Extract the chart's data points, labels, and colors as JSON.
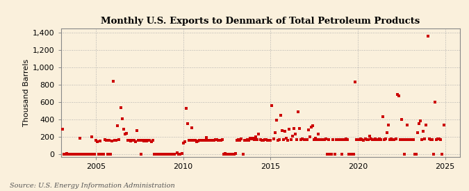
{
  "title": "Monthly U.S. Exports to Denmark of Total Petroleum Products",
  "ylabel": "Thousand Barrels",
  "source": "Source: U.S. Energy Information Administration",
  "bg_color": "#FAF0DC",
  "dot_color": "#CC0000",
  "grid_color": "#AAAAAA",
  "xmin": 2003.0,
  "xmax": 2025.83,
  "ymin": -30,
  "ymax": 1450,
  "yticks": [
    0,
    200,
    400,
    600,
    800,
    1000,
    1200,
    1400
  ],
  "xticks": [
    2005,
    2010,
    2015,
    2020,
    2025
  ],
  "data": [
    [
      2003.08,
      290
    ],
    [
      2003.17,
      0
    ],
    [
      2003.25,
      0
    ],
    [
      2003.33,
      5
    ],
    [
      2003.42,
      0
    ],
    [
      2003.5,
      0
    ],
    [
      2003.58,
      0
    ],
    [
      2003.67,
      0
    ],
    [
      2003.75,
      0
    ],
    [
      2003.83,
      0
    ],
    [
      2003.92,
      0
    ],
    [
      2004.0,
      0
    ],
    [
      2004.08,
      185
    ],
    [
      2004.17,
      0
    ],
    [
      2004.25,
      0
    ],
    [
      2004.33,
      0
    ],
    [
      2004.42,
      0
    ],
    [
      2004.5,
      0
    ],
    [
      2004.58,
      0
    ],
    [
      2004.67,
      0
    ],
    [
      2004.75,
      200
    ],
    [
      2004.83,
      0
    ],
    [
      2004.92,
      0
    ],
    [
      2005.0,
      160
    ],
    [
      2005.08,
      145
    ],
    [
      2005.17,
      0
    ],
    [
      2005.25,
      150
    ],
    [
      2005.33,
      0
    ],
    [
      2005.42,
      0
    ],
    [
      2005.5,
      165
    ],
    [
      2005.58,
      160
    ],
    [
      2005.67,
      0
    ],
    [
      2005.75,
      155
    ],
    [
      2005.83,
      0
    ],
    [
      2005.92,
      150
    ],
    [
      2006.0,
      840
    ],
    [
      2006.08,
      155
    ],
    [
      2006.17,
      155
    ],
    [
      2006.25,
      330
    ],
    [
      2006.33,
      165
    ],
    [
      2006.42,
      540
    ],
    [
      2006.5,
      410
    ],
    [
      2006.58,
      285
    ],
    [
      2006.67,
      230
    ],
    [
      2006.75,
      240
    ],
    [
      2006.83,
      155
    ],
    [
      2006.92,
      160
    ],
    [
      2007.0,
      150
    ],
    [
      2007.08,
      155
    ],
    [
      2007.17,
      155
    ],
    [
      2007.25,
      145
    ],
    [
      2007.33,
      270
    ],
    [
      2007.42,
      155
    ],
    [
      2007.5,
      155
    ],
    [
      2007.58,
      0
    ],
    [
      2007.67,
      155
    ],
    [
      2007.75,
      150
    ],
    [
      2007.83,
      155
    ],
    [
      2007.92,
      150
    ],
    [
      2008.0,
      155
    ],
    [
      2008.08,
      155
    ],
    [
      2008.17,
      145
    ],
    [
      2008.25,
      155
    ],
    [
      2008.33,
      0
    ],
    [
      2008.42,
      0
    ],
    [
      2008.5,
      0
    ],
    [
      2008.67,
      0
    ],
    [
      2008.75,
      0
    ],
    [
      2008.83,
      0
    ],
    [
      2008.92,
      0
    ],
    [
      2009.0,
      0
    ],
    [
      2009.08,
      0
    ],
    [
      2009.17,
      0
    ],
    [
      2009.25,
      0
    ],
    [
      2009.33,
      0
    ],
    [
      2009.42,
      0
    ],
    [
      2009.5,
      0
    ],
    [
      2009.67,
      15
    ],
    [
      2009.75,
      0
    ],
    [
      2009.83,
      0
    ],
    [
      2009.92,
      5
    ],
    [
      2010.0,
      130
    ],
    [
      2010.08,
      145
    ],
    [
      2010.17,
      530
    ],
    [
      2010.25,
      350
    ],
    [
      2010.33,
      155
    ],
    [
      2010.42,
      155
    ],
    [
      2010.5,
      300
    ],
    [
      2010.58,
      160
    ],
    [
      2010.67,
      155
    ],
    [
      2010.75,
      145
    ],
    [
      2010.83,
      150
    ],
    [
      2010.92,
      160
    ],
    [
      2011.0,
      160
    ],
    [
      2011.08,
      155
    ],
    [
      2011.17,
      155
    ],
    [
      2011.25,
      155
    ],
    [
      2011.33,
      190
    ],
    [
      2011.42,
      160
    ],
    [
      2011.5,
      160
    ],
    [
      2011.58,
      160
    ],
    [
      2011.67,
      155
    ],
    [
      2011.75,
      155
    ],
    [
      2011.83,
      165
    ],
    [
      2011.92,
      165
    ],
    [
      2012.0,
      155
    ],
    [
      2012.08,
      155
    ],
    [
      2012.17,
      155
    ],
    [
      2012.25,
      165
    ],
    [
      2012.33,
      0
    ],
    [
      2012.42,
      5
    ],
    [
      2012.5,
      0
    ],
    [
      2012.58,
      0
    ],
    [
      2012.67,
      0
    ],
    [
      2012.75,
      0
    ],
    [
      2012.83,
      0
    ],
    [
      2012.92,
      0
    ],
    [
      2013.0,
      5
    ],
    [
      2013.08,
      160
    ],
    [
      2013.17,
      165
    ],
    [
      2013.25,
      160
    ],
    [
      2013.33,
      175
    ],
    [
      2013.42,
      0
    ],
    [
      2013.5,
      155
    ],
    [
      2013.58,
      155
    ],
    [
      2013.67,
      165
    ],
    [
      2013.75,
      160
    ],
    [
      2013.83,
      180
    ],
    [
      2013.92,
      175
    ],
    [
      2014.0,
      185
    ],
    [
      2014.08,
      165
    ],
    [
      2014.17,
      200
    ],
    [
      2014.25,
      165
    ],
    [
      2014.33,
      235
    ],
    [
      2014.42,
      165
    ],
    [
      2014.5,
      160
    ],
    [
      2014.58,
      160
    ],
    [
      2014.67,
      165
    ],
    [
      2014.75,
      165
    ],
    [
      2014.83,
      160
    ],
    [
      2014.92,
      160
    ],
    [
      2015.0,
      155
    ],
    [
      2015.08,
      560
    ],
    [
      2015.17,
      175
    ],
    [
      2015.25,
      250
    ],
    [
      2015.33,
      390
    ],
    [
      2015.42,
      160
    ],
    [
      2015.5,
      165
    ],
    [
      2015.58,
      450
    ],
    [
      2015.67,
      275
    ],
    [
      2015.75,
      165
    ],
    [
      2015.83,
      260
    ],
    [
      2015.92,
      185
    ],
    [
      2016.0,
      160
    ],
    [
      2016.08,
      290
    ],
    [
      2016.17,
      165
    ],
    [
      2016.25,
      210
    ],
    [
      2016.33,
      295
    ],
    [
      2016.42,
      230
    ],
    [
      2016.5,
      165
    ],
    [
      2016.58,
      490
    ],
    [
      2016.67,
      295
    ],
    [
      2016.75,
      165
    ],
    [
      2016.83,
      175
    ],
    [
      2016.92,
      165
    ],
    [
      2017.0,
      165
    ],
    [
      2017.08,
      165
    ],
    [
      2017.17,
      280
    ],
    [
      2017.25,
      195
    ],
    [
      2017.33,
      315
    ],
    [
      2017.42,
      330
    ],
    [
      2017.5,
      165
    ],
    [
      2017.58,
      185
    ],
    [
      2017.67,
      165
    ],
    [
      2017.75,
      235
    ],
    [
      2017.83,
      165
    ],
    [
      2017.92,
      165
    ],
    [
      2018.0,
      165
    ],
    [
      2018.08,
      165
    ],
    [
      2018.17,
      175
    ],
    [
      2018.25,
      0
    ],
    [
      2018.33,
      165
    ],
    [
      2018.42,
      0
    ],
    [
      2018.5,
      0
    ],
    [
      2018.58,
      165
    ],
    [
      2018.67,
      0
    ],
    [
      2018.75,
      165
    ],
    [
      2018.83,
      165
    ],
    [
      2018.92,
      165
    ],
    [
      2019.0,
      165
    ],
    [
      2019.08,
      0
    ],
    [
      2019.17,
      165
    ],
    [
      2019.25,
      165
    ],
    [
      2019.33,
      175
    ],
    [
      2019.42,
      165
    ],
    [
      2019.5,
      0
    ],
    [
      2019.58,
      0
    ],
    [
      2019.67,
      0
    ],
    [
      2019.75,
      0
    ],
    [
      2019.83,
      830
    ],
    [
      2019.92,
      165
    ],
    [
      2020.0,
      165
    ],
    [
      2020.08,
      165
    ],
    [
      2020.17,
      175
    ],
    [
      2020.25,
      165
    ],
    [
      2020.33,
      155
    ],
    [
      2020.42,
      175
    ],
    [
      2020.5,
      165
    ],
    [
      2020.58,
      165
    ],
    [
      2020.67,
      205
    ],
    [
      2020.75,
      175
    ],
    [
      2020.83,
      165
    ],
    [
      2020.92,
      165
    ],
    [
      2021.0,
      175
    ],
    [
      2021.08,
      165
    ],
    [
      2021.17,
      165
    ],
    [
      2021.25,
      175
    ],
    [
      2021.33,
      165
    ],
    [
      2021.42,
      430
    ],
    [
      2021.5,
      165
    ],
    [
      2021.58,
      175
    ],
    [
      2021.67,
      245
    ],
    [
      2021.75,
      335
    ],
    [
      2021.83,
      165
    ],
    [
      2021.92,
      175
    ],
    [
      2022.0,
      165
    ],
    [
      2022.08,
      165
    ],
    [
      2022.17,
      175
    ],
    [
      2022.25,
      690
    ],
    [
      2022.33,
      670
    ],
    [
      2022.42,
      165
    ],
    [
      2022.5,
      400
    ],
    [
      2022.58,
      165
    ],
    [
      2022.67,
      0
    ],
    [
      2022.75,
      165
    ],
    [
      2022.83,
      335
    ],
    [
      2022.92,
      165
    ],
    [
      2023.0,
      165
    ],
    [
      2023.08,
      165
    ],
    [
      2023.17,
      165
    ],
    [
      2023.25,
      0
    ],
    [
      2023.33,
      0
    ],
    [
      2023.42,
      250
    ],
    [
      2023.5,
      350
    ],
    [
      2023.58,
      380
    ],
    [
      2023.67,
      165
    ],
    [
      2023.75,
      265
    ],
    [
      2023.83,
      175
    ],
    [
      2023.92,
      335
    ],
    [
      2024.0,
      1360
    ],
    [
      2024.08,
      175
    ],
    [
      2024.17,
      165
    ],
    [
      2024.25,
      165
    ],
    [
      2024.33,
      0
    ],
    [
      2024.42,
      600
    ],
    [
      2024.5,
      165
    ],
    [
      2024.58,
      175
    ],
    [
      2024.67,
      175
    ],
    [
      2024.75,
      165
    ],
    [
      2024.83,
      0
    ],
    [
      2024.92,
      335
    ]
  ]
}
